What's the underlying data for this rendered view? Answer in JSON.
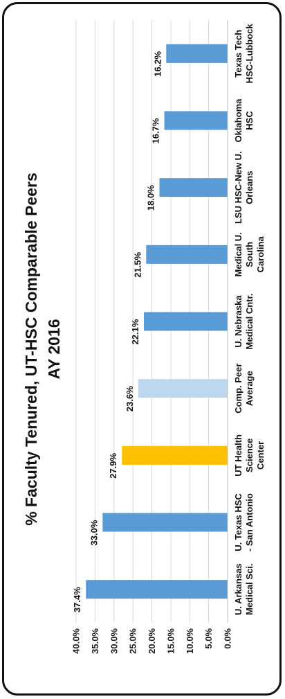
{
  "chart_data": {
    "type": "bar",
    "orientation": "rotated-90",
    "title_lines": [
      "% Faculty Tenured, UT-HSC Comparable Peers",
      "AY 2016"
    ],
    "categories": [
      [
        "U. Arkansas",
        "Medical Sci."
      ],
      [
        "U. Texas HSC",
        "- San Antonio"
      ],
      [
        "UT Health",
        "Science",
        "Center"
      ],
      [
        "Comp. Peer",
        "Average"
      ],
      [
        "U. Nebraska",
        "Medical Cntr."
      ],
      [
        "Medical U.",
        "South",
        "Carolina"
      ],
      [
        "LSU HSC-New U.",
        "Orleans"
      ],
      [
        "Oklahoma",
        "HSC"
      ],
      [
        "Texas Tech",
        "HSC-Lubbock"
      ]
    ],
    "values": [
      37.4,
      33.0,
      27.9,
      23.6,
      22.1,
      21.5,
      18.0,
      16.7,
      16.2
    ],
    "data_labels": [
      "37.4%",
      "33.0%",
      "27.9%",
      "23.6%",
      "22.1%",
      "21.5%",
      "18.0%",
      "16.7%",
      "16.2%"
    ],
    "bar_colors": [
      "#5b9bd5",
      "#5b9bd5",
      "#ffc000",
      "#bdd7ee",
      "#5b9bd5",
      "#5b9bd5",
      "#5b9bd5",
      "#5b9bd5",
      "#5b9bd5"
    ],
    "yticks": [
      "0.0%",
      "5.0%",
      "10.0%",
      "15.0%",
      "20.0%",
      "25.0%",
      "30.0%",
      "35.0%",
      "40.0%"
    ],
    "ylim": [
      0,
      40
    ],
    "grid": true,
    "legend": "none"
  }
}
